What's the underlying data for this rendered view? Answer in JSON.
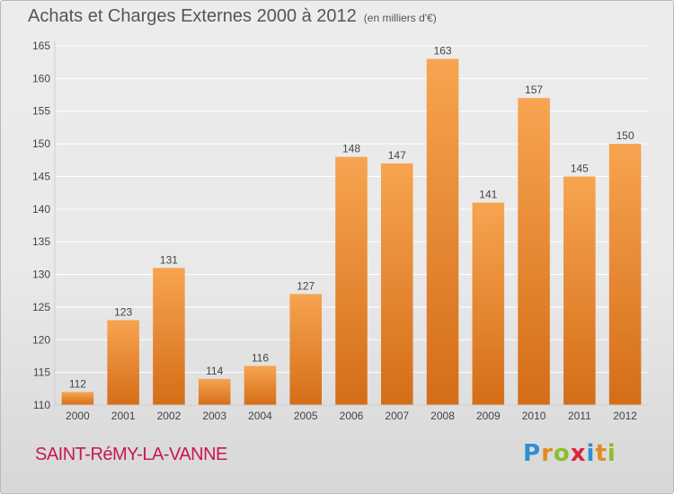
{
  "header": {
    "title": "Achats et Charges Externes 2000 à 2012",
    "unit": "(en milliers d'€)"
  },
  "footer": {
    "commune": "SAINT-RéMY-LA-VANNE",
    "logo_letters": [
      "P",
      "r",
      "o",
      "x",
      "i",
      "t",
      "i"
    ],
    "logo_colors": [
      "#2e8fd6",
      "#e58a1f",
      "#8bbf2c",
      "#d8263d",
      "#2e8fd6",
      "#e58a1f",
      "#8bbf2c"
    ]
  },
  "colors": {
    "bar_light": "#f7a450",
    "bar_dark": "#d56d17",
    "grid": "#ffffff",
    "axis_text": "#444444"
  },
  "chart_data": {
    "type": "bar",
    "categories": [
      "2000",
      "2001",
      "2002",
      "2003",
      "2004",
      "2005",
      "2006",
      "2007",
      "2008",
      "2009",
      "2010",
      "2011",
      "2012"
    ],
    "values": [
      112,
      123,
      131,
      114,
      116,
      127,
      148,
      147,
      163,
      141,
      157,
      145,
      150
    ],
    "ylim": [
      110,
      165
    ],
    "yticks": [
      110,
      115,
      120,
      125,
      130,
      135,
      140,
      145,
      150,
      155,
      160,
      165
    ],
    "grid": true,
    "data_labels": true
  }
}
